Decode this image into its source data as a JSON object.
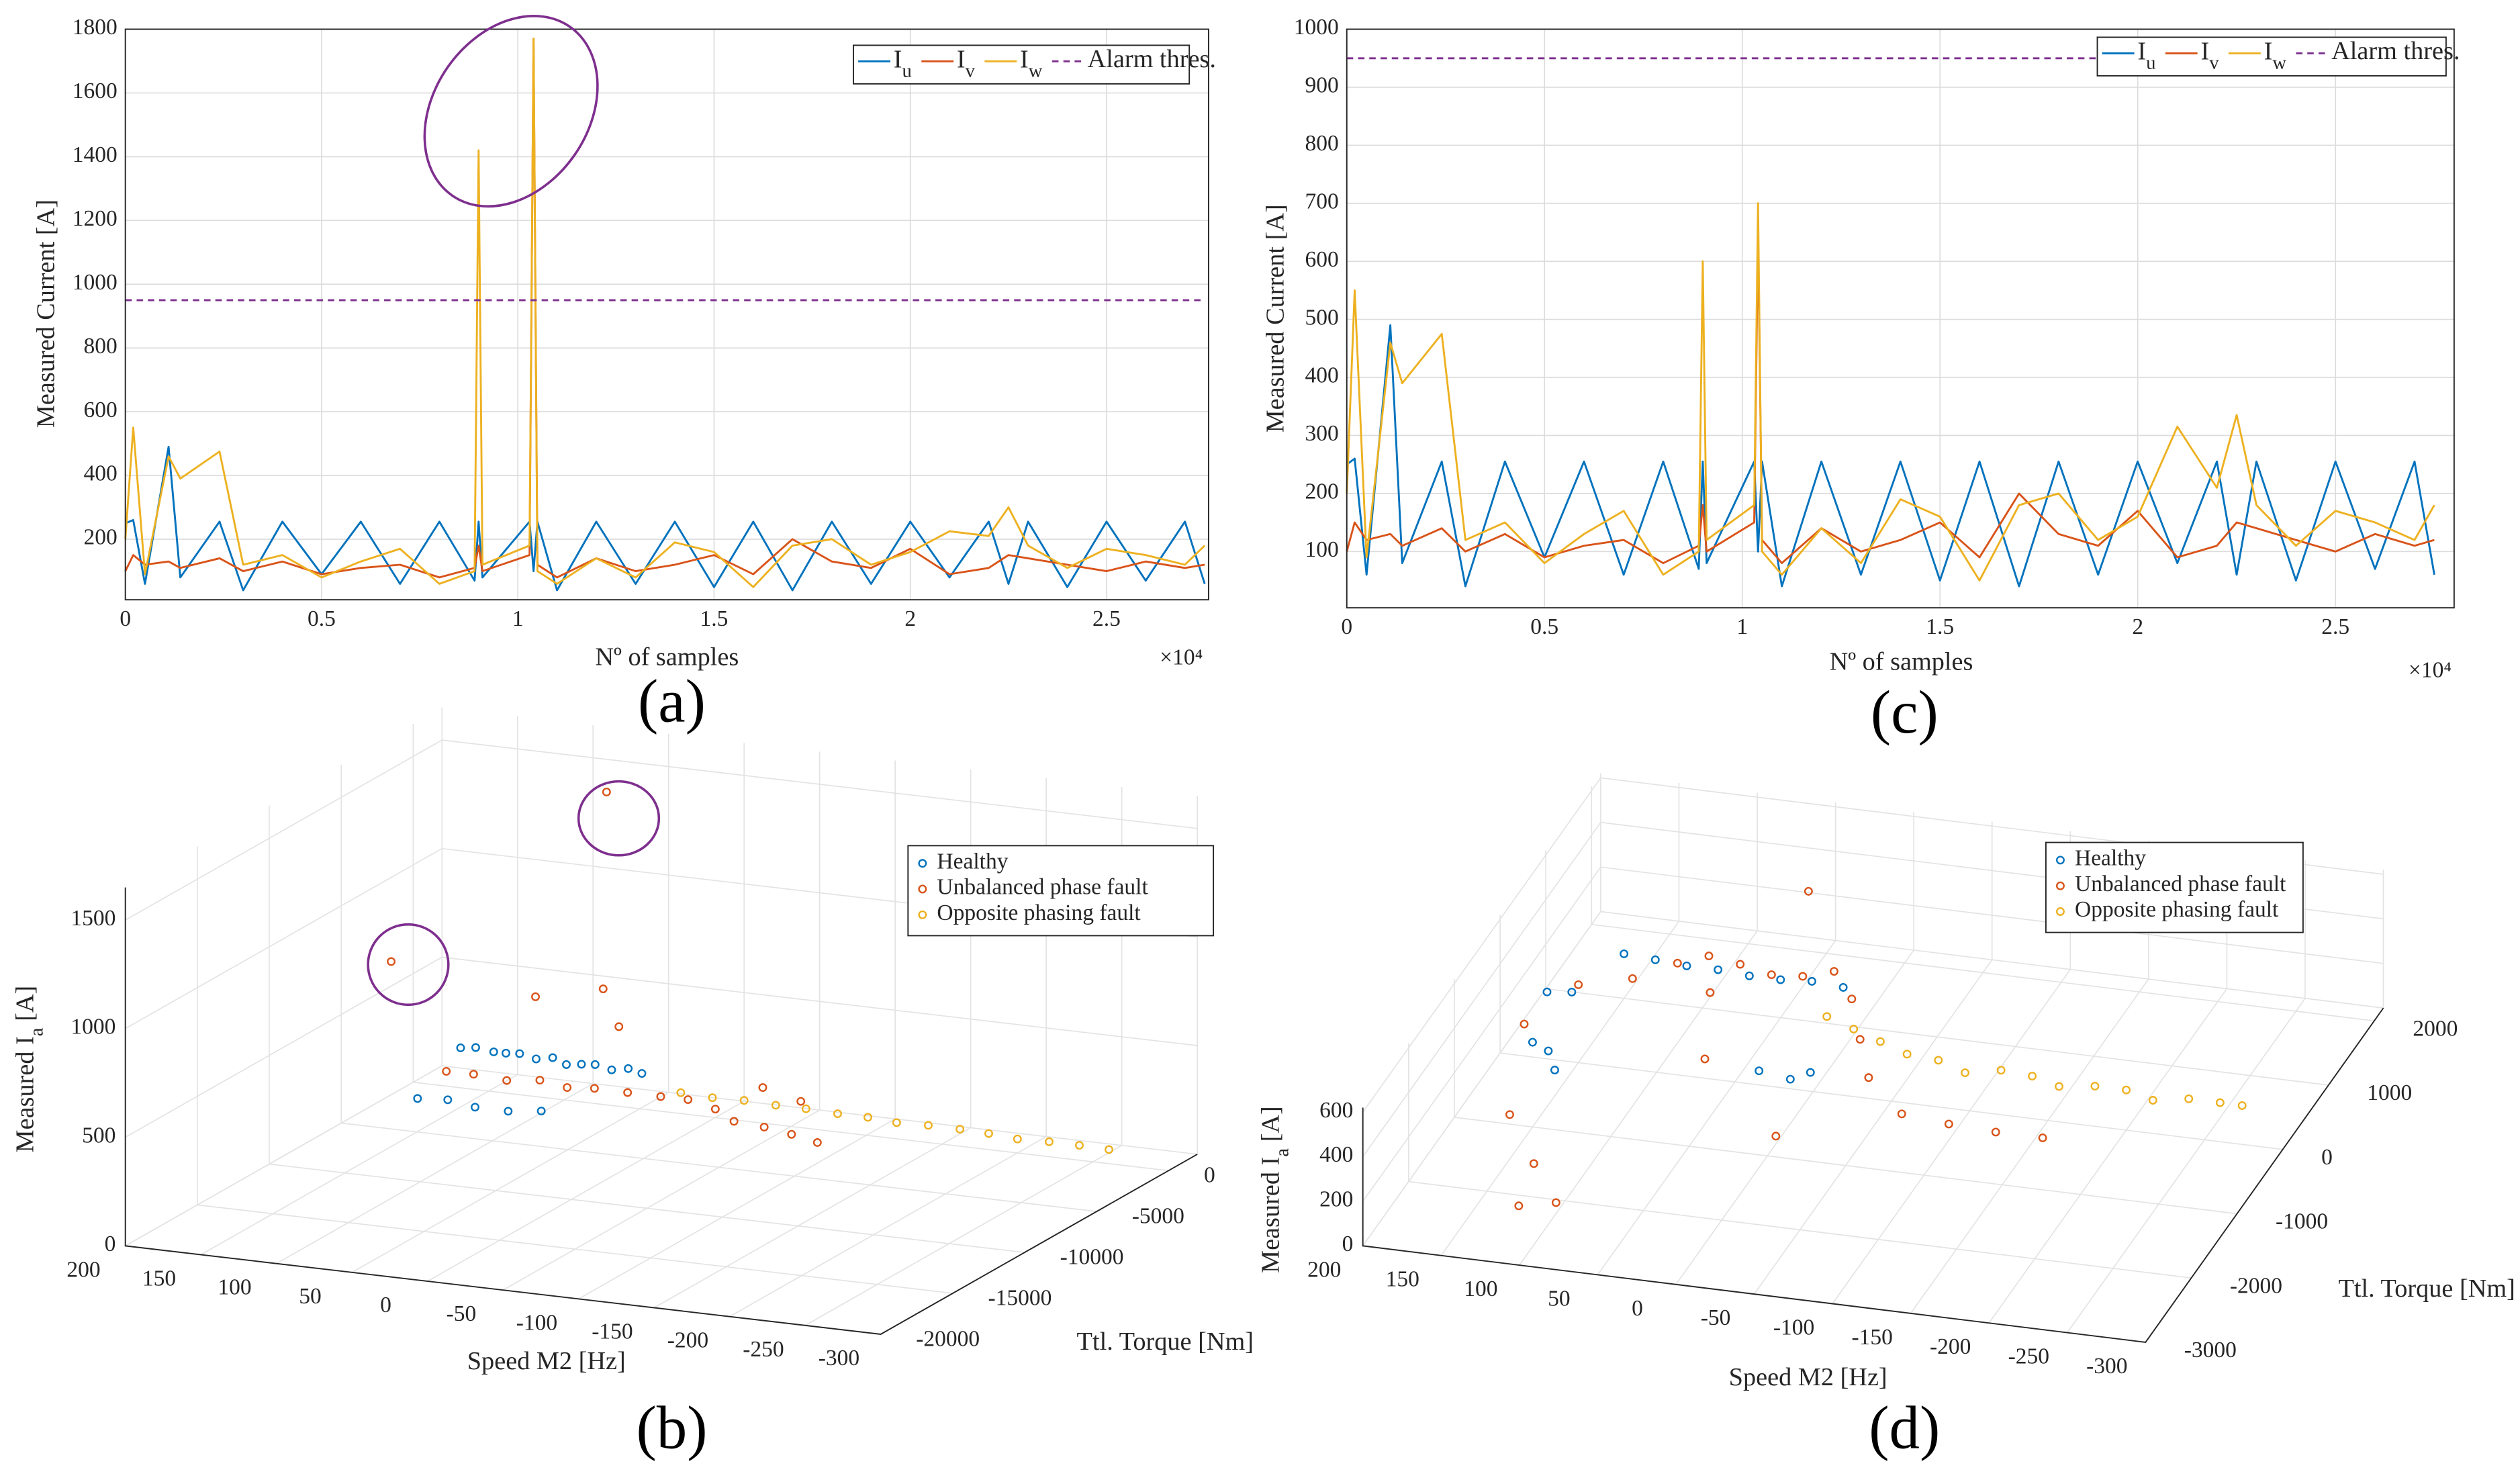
{
  "chart_data": [
    {
      "type": "line",
      "panel_label": "(a)",
      "xlabel": "Nº of samples",
      "ylabel": "Measured Current [A]",
      "x_multiplier": "×10⁴",
      "xlim": [
        0,
        27600
      ],
      "ylim": [
        10,
        1800
      ],
      "xticks": [
        0,
        {
          "value": 5000,
          "label": "0.5"
        },
        {
          "value": 10000,
          "label": "1"
        },
        {
          "value": 15000,
          "label": "1.5"
        },
        {
          "value": 20000,
          "label": "2"
        },
        {
          "value": 25000,
          "label": "2.5"
        }
      ],
      "yticks": [
        200,
        400,
        600,
        800,
        1000,
        1200,
        1400,
        1600,
        1800
      ],
      "grid": true,
      "legend": "upper right",
      "x": [
        0,
        200,
        500,
        1100,
        1400,
        2400,
        3000,
        4000,
        5000,
        6000,
        7000,
        8000,
        8900,
        9000,
        9100,
        10300,
        10400,
        10500,
        11000,
        12000,
        13000,
        14000,
        15000,
        16000,
        17000,
        18000,
        19000,
        20000,
        21000,
        22000,
        22500,
        23000,
        24000,
        25000,
        26000,
        27000,
        27500
      ],
      "series": [
        {
          "name": "Iu",
          "color": "#0072bd",
          "values": [
            250,
            260,
            60,
            490,
            80,
            255,
            40,
            255,
            90,
            255,
            60,
            255,
            70,
            255,
            80,
            255,
            100,
            255,
            40,
            255,
            60,
            255,
            50,
            255,
            40,
            255,
            60,
            255,
            80,
            255,
            60,
            255,
            50,
            255,
            70,
            255,
            60
          ]
        },
        {
          "name": "Iv",
          "color": "#d95319",
          "values": [
            100,
            150,
            120,
            130,
            110,
            140,
            100,
            130,
            90,
            110,
            120,
            80,
            110,
            180,
            100,
            150,
            1770,
            120,
            80,
            140,
            100,
            120,
            150,
            90,
            200,
            130,
            110,
            170,
            90,
            110,
            150,
            140,
            120,
            100,
            130,
            110,
            120
          ]
        },
        {
          "name": "Iw",
          "color": "#edb120",
          "values": [
            200,
            550,
            90,
            460,
            390,
            475,
            120,
            150,
            80,
            130,
            170,
            60,
            100,
            1420,
            120,
            180,
            1770,
            100,
            60,
            140,
            80,
            190,
            160,
            50,
            180,
            200,
            120,
            160,
            225,
            210,
            300,
            180,
            110,
            170,
            150,
            120,
            180
          ]
        },
        {
          "name": "Alarm thres.",
          "color": "#7e2f8e",
          "dashed": true,
          "values": [
            950,
            950,
            950,
            950,
            950,
            950,
            950,
            950,
            950,
            950,
            950,
            950,
            950,
            950,
            950,
            950,
            950,
            950,
            950,
            950,
            950,
            950,
            950,
            950,
            950,
            950,
            950,
            950,
            950,
            950,
            950,
            950,
            950,
            950,
            950,
            950,
            950
          ]
        }
      ]
    },
    {
      "type": "scatter3d",
      "panel_label": "(b)",
      "xlabel": "Speed M2 [Hz]",
      "ylabel": "Ttl. Torque [Nm]",
      "zlabel": "Measured Ia [A]",
      "xlim": [
        -300,
        200
      ],
      "ylim": [
        -20000,
        2000
      ],
      "zlim": [
        0,
        1650
      ],
      "xticks": [
        200,
        150,
        100,
        50,
        0,
        -50,
        -100,
        -150,
        -200,
        -250,
        -300
      ],
      "yticks": [
        0,
        -5000,
        -10000,
        -15000,
        -20000
      ],
      "zticks": [
        0,
        500,
        1000,
        1500
      ],
      "grid": true,
      "legend": "upper right",
      "series": [
        {
          "name": "Healthy",
          "color": "#0072bd",
          "x": [
            140,
            130,
            120,
            110,
            100,
            90,
            80,
            70,
            60,
            50,
            40,
            30,
            20,
            140,
            120,
            100,
            80,
            60
          ],
          "y": [
            -3000,
            -3000,
            -2800,
            -3000,
            -3100,
            -3000,
            -2900,
            -3000,
            -3000,
            -3100,
            -3000,
            -2900,
            -3000,
            -6000,
            -6000,
            -6200,
            -6000,
            -5800
          ],
          "z": [
            320,
            330,
            310,
            320,
            330,
            310,
            320,
            300,
            310,
            320,
            300,
            310,
            300,
            200,
            210,
            200,
            190,
            200
          ]
        },
        {
          "name": "Unbalanced phase fault",
          "color": "#d95319",
          "x": [
            140,
            120,
            100,
            80,
            60,
            40,
            20,
            0,
            -20,
            -40,
            -60,
            -80,
            -100,
            -120,
            -60,
            -90,
            186,
            72,
            100,
            60,
            40
          ],
          "y": [
            -4000,
            -4200,
            -4000,
            -3800,
            -4000,
            -4200,
            -4000,
            -3800,
            -4000,
            -4200,
            -5000,
            -5000,
            -5200,
            -5500,
            -3000,
            -3500,
            -3000,
            0,
            -2000,
            -1500,
            -2500
          ],
          "z": [
            250,
            260,
            240,
            250,
            240,
            260,
            250,
            240,
            250,
            230,
            220,
            210,
            200,
            190,
            300,
            280,
            680,
            1440,
            550,
            600,
            480
          ]
        },
        {
          "name": "Opposite phasing fault",
          "color": "#edb120",
          "x": [
            -20,
            -40,
            -60,
            -80,
            -100,
            -120,
            -140,
            -160,
            -180,
            -200,
            -220,
            -240,
            -260,
            -280,
            -300
          ],
          "y": [
            -4500,
            -4400,
            -4300,
            -4200,
            -4200,
            -4100,
            -4100,
            -4200,
            -4100,
            -4000,
            -4100,
            -4200,
            -4100,
            -4100,
            -4140
          ],
          "z": [
            300,
            290,
            290,
            280,
            280,
            270,
            270,
            265,
            265,
            260,
            260,
            255,
            255,
            255,
            253
          ]
        }
      ]
    },
    {
      "type": "line",
      "panel_label": "(c)",
      "xlabel": "Nº of samples",
      "ylabel": "Measured Current [A]",
      "x_multiplier": "×10⁴",
      "xlim": [
        0,
        28000
      ],
      "ylim": [
        3,
        1000
      ],
      "xticks": [
        0,
        {
          "value": 5000,
          "label": "0.5"
        },
        {
          "value": 10000,
          "label": "1"
        },
        {
          "value": 15000,
          "label": "1.5"
        },
        {
          "value": 20000,
          "label": "2"
        },
        {
          "value": 25000,
          "label": "2.5"
        }
      ],
      "yticks": [
        100,
        200,
        300,
        400,
        500,
        600,
        700,
        800,
        900,
        1000
      ],
      "grid": true,
      "legend": "upper right",
      "x": [
        0,
        200,
        500,
        1100,
        1400,
        2400,
        3000,
        4000,
        5000,
        6000,
        7000,
        8000,
        8900,
        9000,
        9100,
        10300,
        10400,
        10500,
        11000,
        12000,
        13000,
        14000,
        15000,
        16000,
        17000,
        18000,
        19000,
        20000,
        21000,
        22000,
        22500,
        23000,
        24000,
        25000,
        26000,
        27000,
        27500
      ],
      "series": [
        {
          "name": "Iu",
          "color": "#0072bd",
          "values": [
            250,
            260,
            60,
            490,
            80,
            255,
            40,
            255,
            90,
            255,
            60,
            255,
            70,
            255,
            80,
            255,
            100,
            255,
            40,
            255,
            60,
            255,
            50,
            255,
            40,
            255,
            60,
            255,
            80,
            255,
            60,
            255,
            50,
            255,
            70,
            255,
            60
          ]
        },
        {
          "name": "Iv",
          "color": "#d95319",
          "values": [
            100,
            150,
            120,
            130,
            110,
            140,
            100,
            130,
            90,
            110,
            120,
            80,
            110,
            180,
            100,
            150,
            650,
            120,
            80,
            140,
            100,
            120,
            150,
            90,
            200,
            130,
            110,
            170,
            90,
            110,
            150,
            140,
            120,
            100,
            130,
            110,
            120
          ]
        },
        {
          "name": "Iw",
          "color": "#edb120",
          "values": [
            200,
            550,
            90,
            460,
            390,
            475,
            120,
            150,
            80,
            130,
            170,
            60,
            100,
            600,
            120,
            180,
            700,
            100,
            60,
            140,
            80,
            190,
            160,
            50,
            180,
            200,
            120,
            160,
            315,
            210,
            335,
            180,
            110,
            170,
            150,
            120,
            180
          ]
        },
        {
          "name": "Alarm thres.",
          "color": "#7e2f8e",
          "dashed": true,
          "values": [
            950,
            950,
            950,
            950,
            950,
            950,
            950,
            950,
            950,
            950,
            950,
            950,
            950,
            950,
            950,
            950,
            950,
            950,
            950,
            950,
            950,
            950,
            950,
            950,
            950,
            950,
            950,
            950,
            950,
            950,
            950,
            950,
            950,
            950,
            950,
            950,
            950
          ]
        }
      ]
    },
    {
      "type": "scatter3d",
      "panel_label": "(d)",
      "xlabel": "Speed M2 [Hz]",
      "ylabel": "Ttl. Torque [Nm]",
      "zlabel": "Measured Ia [A]",
      "xlim": [
        -300,
        200
      ],
      "ylim": [
        -3000,
        2200
      ],
      "zlim": [
        0,
        620
      ],
      "xticks": [
        200,
        150,
        100,
        50,
        0,
        -50,
        -100,
        -150,
        -200,
        -250,
        -300
      ],
      "yticks": [
        2000,
        1000,
        0,
        -1000,
        -2000,
        -3000
      ],
      "zticks": [
        0,
        200,
        400,
        600
      ],
      "grid": true,
      "legend": "upper right",
      "series": [
        {
          "name": "Healthy",
          "color": "#0072bd",
          "x": [
            170,
            160,
            150,
            130,
            110,
            90,
            70,
            50,
            30,
            10,
            150,
            140,
            130,
            20,
            0,
            -10
          ],
          "y": [
            0,
            200,
            1000,
            1000,
            1000,
            1000,
            1000,
            1000,
            1000,
            1000,
            -1000,
            -1000,
            -1200,
            -500,
            -500,
            -400
          ],
          "z": [
            300,
            250,
            200,
            190,
            180,
            180,
            170,
            170,
            180,
            170,
            380,
            350,
            330,
            220,
            200,
            210
          ]
        },
        {
          "name": "Unbalanced phase fault",
          "color": "#d95319",
          "x": [
            170,
            150,
            130,
            110,
            90,
            70,
            50,
            30,
            10,
            -10,
            -30,
            -50,
            -80,
            -110,
            -140,
            -170,
            150,
            120,
            115,
            60,
            3,
            40,
            100,
            -20
          ],
          "y": [
            -500,
            0,
            500,
            800,
            800,
            800,
            800,
            800,
            800,
            500,
            0,
            -500,
            -800,
            -800,
            -800,
            -800,
            -1500,
            -2000,
            -2500,
            -200,
            0,
            -1000,
            -2200,
            -1500
          ],
          "z": [
            300,
            350,
            250,
            250,
            300,
            280,
            250,
            260,
            300,
            280,
            260,
            250,
            200,
            180,
            170,
            170,
            200,
            150,
            109,
            450,
            896,
            400,
            50,
            250
          ]
        },
        {
          "name": "Opposite phasing fault",
          "color": "#edb120",
          "x": [
            0,
            -20,
            -40,
            -60,
            -80,
            -100,
            -120,
            -140,
            -160,
            -180,
            -200,
            -220,
            -240,
            -260,
            -274
          ],
          "y": [
            300,
            200,
            100,
            0,
            0,
            -100,
            0,
            0,
            -100,
            0,
            0,
            -100,
            0,
            0,
            0
          ],
          "z": [
            250,
            240,
            230,
            220,
            210,
            200,
            200,
            190,
            190,
            180,
            180,
            180,
            175,
            175,
            174
          ]
        }
      ]
    }
  ]
}
